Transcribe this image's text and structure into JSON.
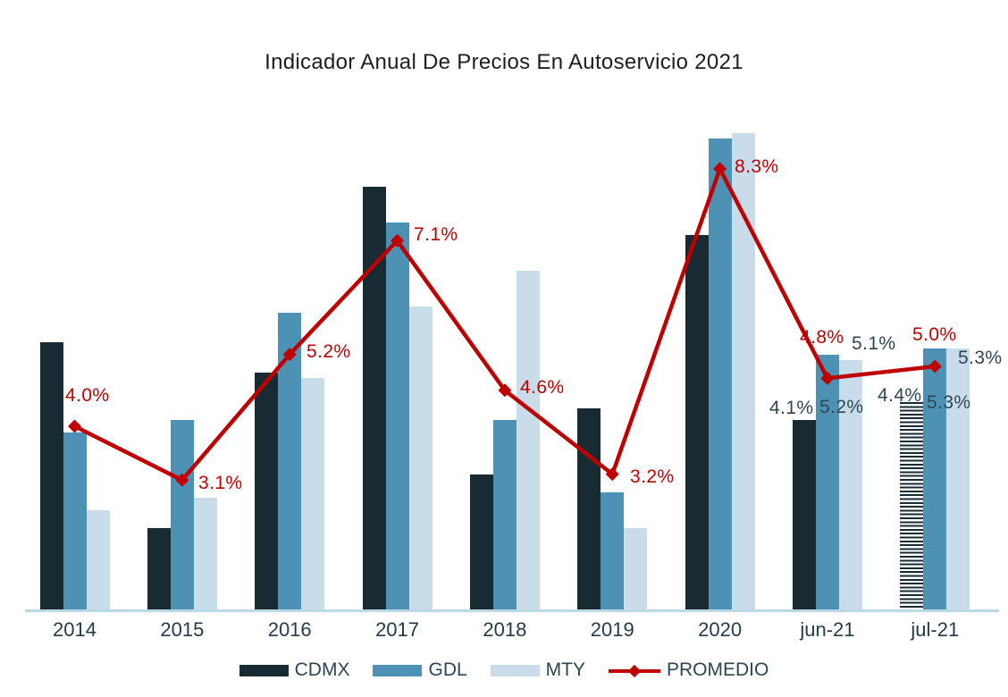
{
  "title": "Indicador Anual De Precios En Autoservicio 2021",
  "colors": {
    "cdmx": "#182b33",
    "gdl": "#4d92b4",
    "mty": "#c8dde9",
    "promedio": "#c00000",
    "axis_line": "#bcd7e5",
    "bar_label_text": "#2f4653",
    "axis_label_text": "#243c49",
    "title_text": "#1e1e1e"
  },
  "chart_data": {
    "type": "bar",
    "subtype": "grouped bars with average line overlay",
    "title": "Indicador Anual De Precios En Autoservicio 2021",
    "categories": [
      "2014",
      "2015",
      "2016",
      "2017",
      "2018",
      "2019",
      "2020",
      "jun-21",
      "jul-21"
    ],
    "series": [
      {
        "name": "CDMX",
        "type": "bar",
        "color_key": "cdmx",
        "values": [
          5.4,
          2.3,
          4.9,
          8.0,
          3.2,
          4.3,
          7.2,
          4.1,
          4.4
        ],
        "pattern_points": {
          "jul-21": "horizontal-stripes"
        }
      },
      {
        "name": "GDL",
        "type": "bar",
        "color_key": "gdl",
        "values": [
          3.9,
          4.1,
          5.9,
          7.4,
          4.1,
          2.9,
          8.8,
          5.2,
          5.3
        ]
      },
      {
        "name": "MTY",
        "type": "bar",
        "color_key": "mty",
        "values": [
          2.6,
          2.8,
          4.8,
          6.0,
          6.6,
          2.3,
          8.9,
          5.1,
          5.3
        ]
      },
      {
        "name": "PROMEDIO",
        "type": "line",
        "color_key": "promedio",
        "marker": "diamond",
        "values": [
          4.0,
          3.1,
          5.2,
          7.1,
          4.6,
          3.2,
          8.3,
          4.8,
          5.0
        ]
      }
    ],
    "promedio_labels": [
      "4.0%",
      "3.1%",
      "5.2%",
      "7.1%",
      "4.6%",
      "3.2%",
      "8.3%",
      "4.8%",
      "5.0%"
    ],
    "bar_value_labels": [
      {
        "category": "jun-21",
        "series": "CDMX",
        "text": "4.1%"
      },
      {
        "category": "jun-21",
        "series": "GDL",
        "text": "5.2%"
      },
      {
        "category": "jun-21",
        "series": "MTY",
        "text": "5.1%"
      },
      {
        "category": "jul-21",
        "series": "CDMX",
        "text": "4.4%"
      },
      {
        "category": "jul-21",
        "series": "GDL",
        "text": "5.3%"
      },
      {
        "category": "jul-21",
        "series": "MTY",
        "text": "5.3%"
      }
    ],
    "xlabel": "",
    "ylabel": "",
    "ylim": [
      0.9,
      9.7
    ],
    "grid": false,
    "y_axis_visible": false,
    "legend_position": "bottom"
  },
  "legend": {
    "items": [
      {
        "label": "CDMX",
        "marker": "square",
        "color_key": "cdmx"
      },
      {
        "label": "GDL",
        "marker": "square",
        "color_key": "gdl"
      },
      {
        "label": "MTY",
        "marker": "square",
        "color_key": "mty"
      },
      {
        "label": "PROMEDIO",
        "marker": "line-diamond",
        "color_key": "promedio"
      }
    ]
  }
}
